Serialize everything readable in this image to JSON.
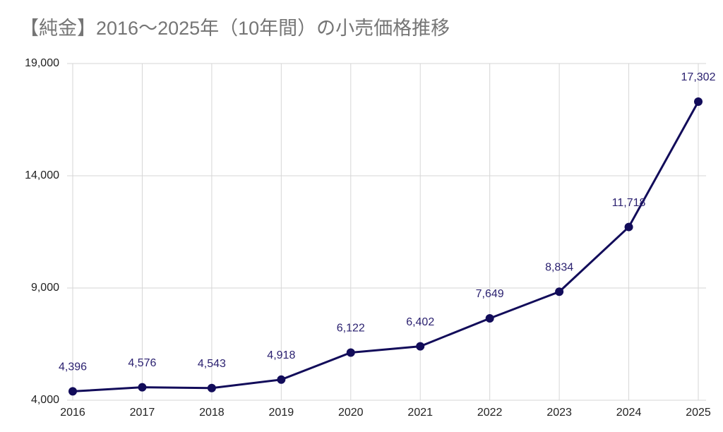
{
  "chart_data": {
    "type": "line",
    "title": "【純金】2016～2025年（10年間）の小売価格推移",
    "categories": [
      "2016",
      "2017",
      "2018",
      "2019",
      "2020",
      "2021",
      "2022",
      "2023",
      "2024",
      "2025"
    ],
    "values": [
      4396,
      4576,
      4543,
      4918,
      6122,
      6402,
      7649,
      8834,
      11718,
      17302
    ],
    "value_labels": [
      "4,396",
      "4,576",
      "4,543",
      "4,918",
      "6,122",
      "6,402",
      "7,649",
      "8,834",
      "11,718",
      "17,302"
    ],
    "color": "#120c5a",
    "ylim": [
      4000,
      19000
    ],
    "yticks": [
      {
        "value": 4000,
        "label": "4,000"
      },
      {
        "value": 9000,
        "label": "9,000"
      },
      {
        "value": 14000,
        "label": "14,000"
      },
      {
        "value": 19000,
        "label": "19,000"
      }
    ],
    "grid": true
  }
}
